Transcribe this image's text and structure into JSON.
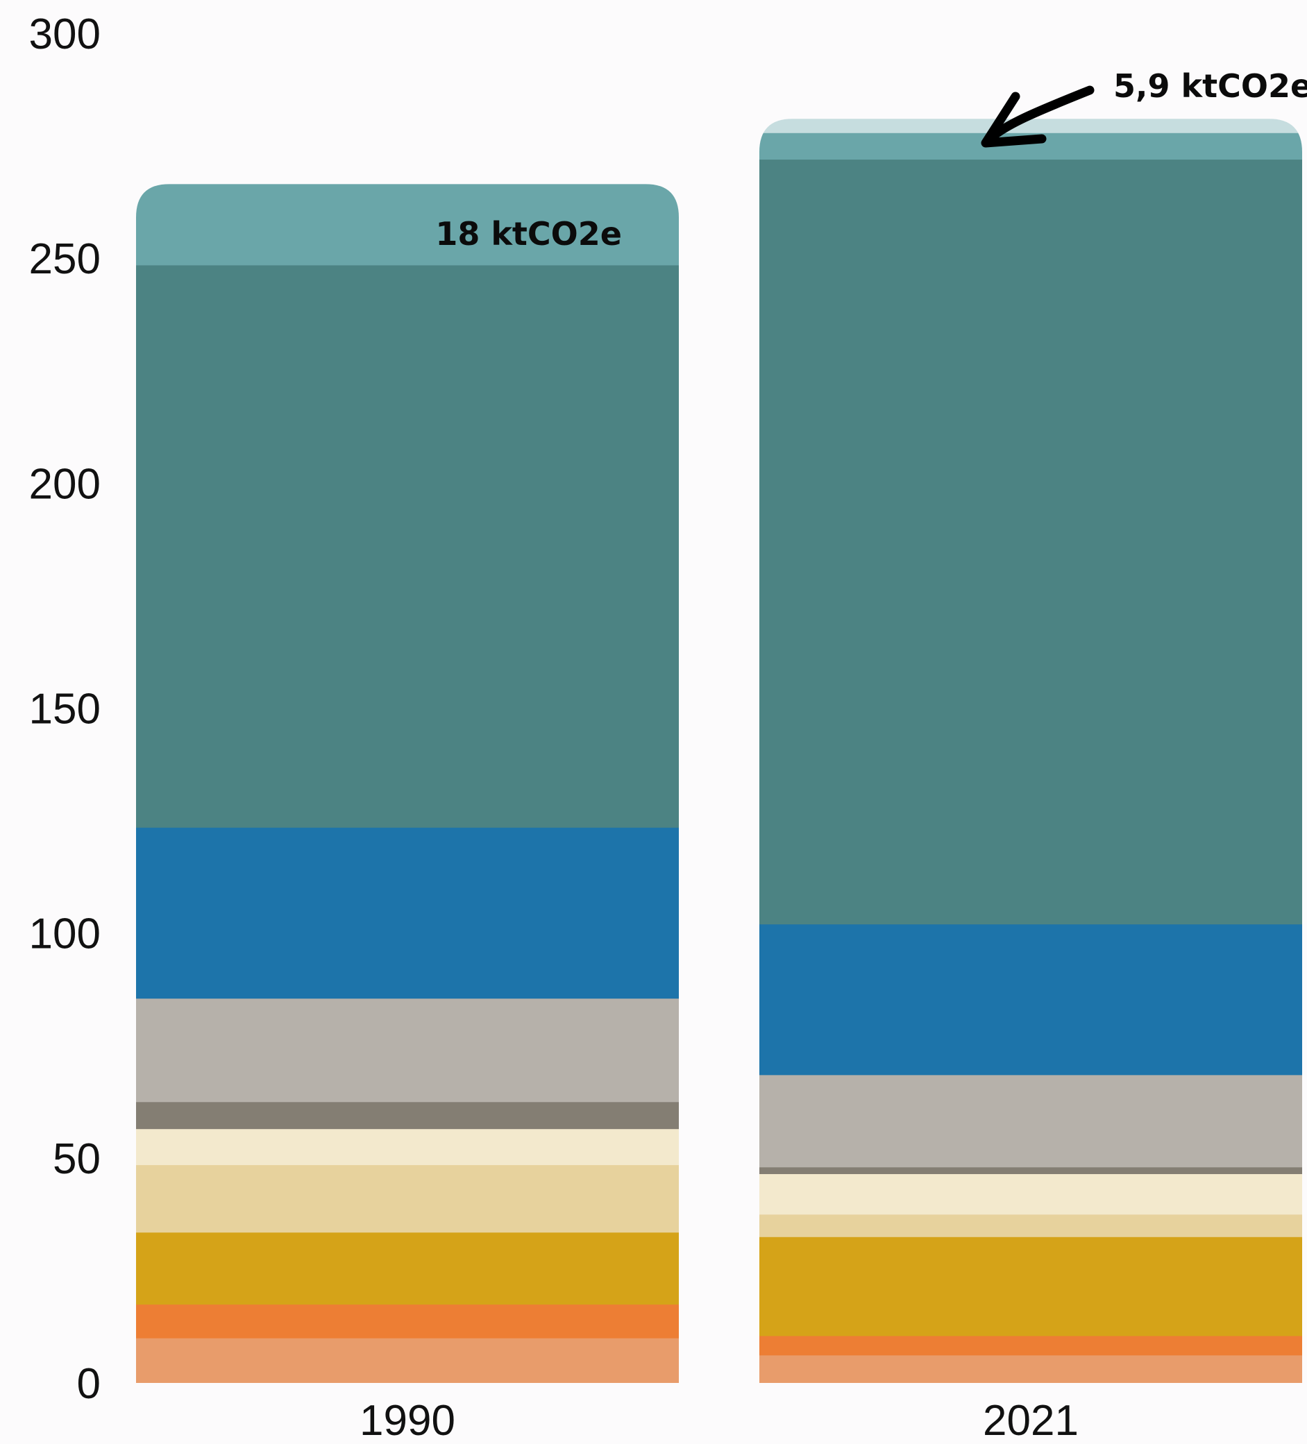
{
  "chart_data": {
    "type": "bar",
    "stacked": true,
    "categories": [
      "1990",
      "2021"
    ],
    "ylim": [
      0,
      300
    ],
    "y_ticks": [
      "0",
      "50",
      "100",
      "150",
      "200",
      "250",
      "300"
    ],
    "grid": false,
    "legend": "none",
    "series": [
      {
        "color": "#e89c6b",
        "values": [
          10,
          6.2
        ]
      },
      {
        "color": "#ed7e34",
        "values": [
          7.5,
          4.3
        ]
      },
      {
        "color": "#d5a318",
        "values": [
          16,
          22
        ]
      },
      {
        "color": "#e7d29d",
        "values": [
          15,
          5
        ]
      },
      {
        "color": "#f3e9cd",
        "values": [
          8,
          9
        ]
      },
      {
        "color": "#847e73",
        "values": [
          6,
          1.5
        ]
      },
      {
        "color": "#b6b1aa",
        "values": [
          23,
          20.5
        ]
      },
      {
        "color": "#1d74aa",
        "values": [
          38,
          33.5
        ]
      },
      {
        "color": "#4c8383",
        "values": [
          125,
          170
        ]
      },
      {
        "color": "#6aa6a9",
        "values": [
          18,
          5.9
        ]
      },
      {
        "color": "#c6dddf",
        "values": [
          0,
          3.1
        ]
      }
    ],
    "annotations": [
      {
        "category": "1990",
        "text": "18 ktCO2e"
      },
      {
        "category": "2021",
        "text": "5,9 ktCO2e",
        "arrow": true
      }
    ]
  }
}
